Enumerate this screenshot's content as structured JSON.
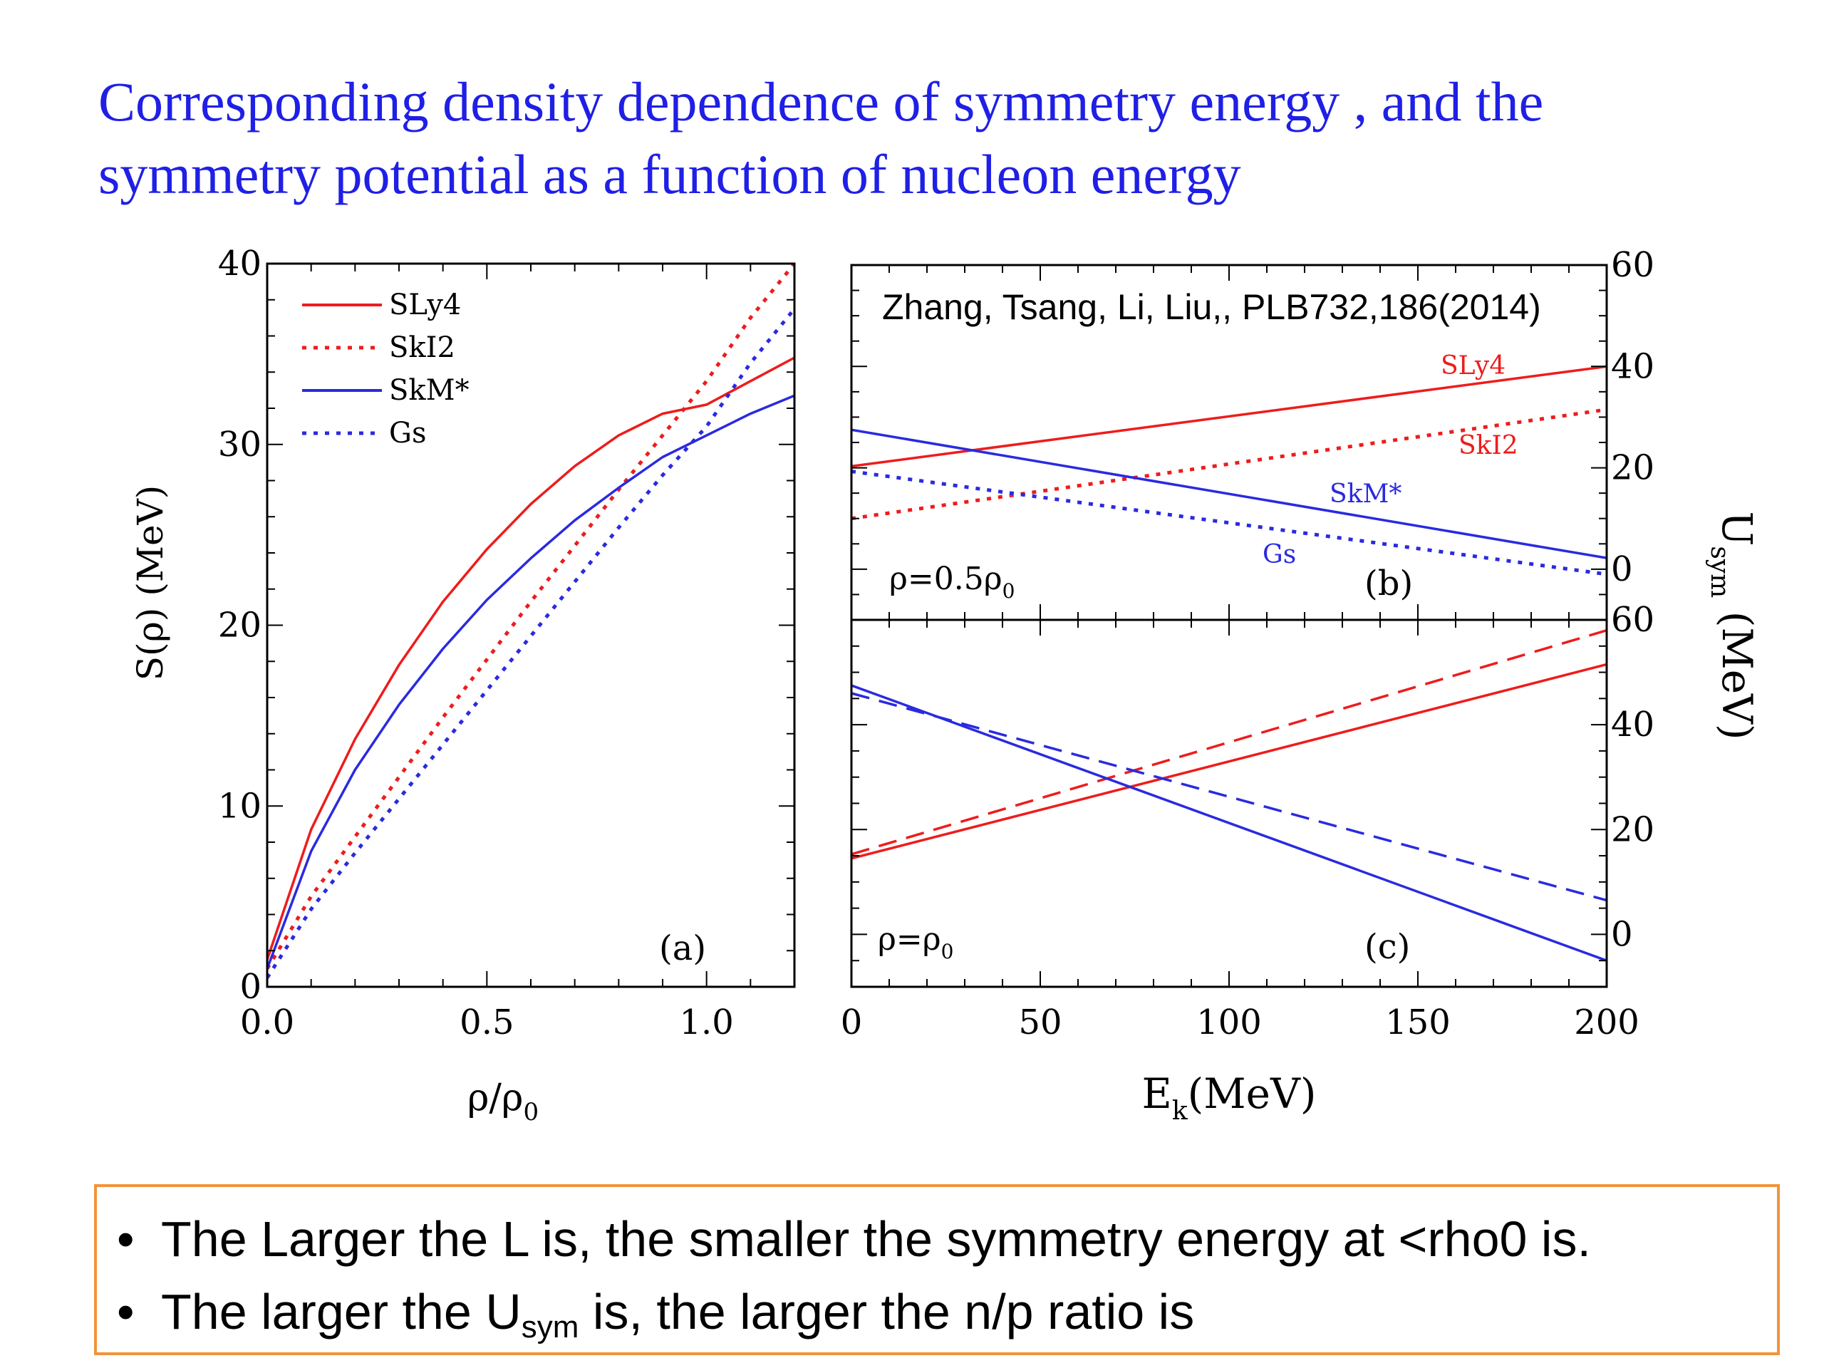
{
  "title": {
    "line1": "Corresponding density dependence of symmetry energy , and the",
    "line2": "symmetry potential as a function of nucleon energy"
  },
  "citation": "Zhang, Tsang, Li, Liu,, PLB732,186(2014)",
  "notes": {
    "bullet_char": "•",
    "item1": "The Larger the L is, the smaller the symmetry energy at <rho0 is.",
    "item2_pre": "The larger the U",
    "item2_sub": "sym",
    "item2_post": " is, the larger the n/p ratio is"
  },
  "colors": {
    "title": "#1f1fe6",
    "red": "#ee1c1c",
    "blue": "#2a2ae0",
    "box_border": "#f0943a"
  },
  "chart_data": [
    {
      "id": "a",
      "type": "line",
      "panel_label": "(a)",
      "xlabel_main": "ρ/ρ",
      "xlabel_sub": "0",
      "ylabel": "S(ρ) (MeV)",
      "xlim": [
        0,
        1.2
      ],
      "ylim": [
        0,
        40
      ],
      "xticks": [
        0.0,
        0.5,
        1.0
      ],
      "xtick_labels": [
        "0.0",
        "0.5",
        "1.0"
      ],
      "yticks": [
        0,
        10,
        20,
        30,
        40
      ],
      "ytick_labels": [
        "0",
        "10",
        "20",
        "30",
        "40"
      ],
      "legend": [
        "SLy4",
        "SkI2",
        "SkM*",
        "Gs"
      ],
      "series": [
        {
          "name": "SLy4",
          "color": "red",
          "dash": "solid",
          "x": [
            0.0,
            0.1,
            0.2,
            0.3,
            0.4,
            0.5,
            0.6,
            0.7,
            0.8,
            0.9,
            1.0,
            1.1,
            1.2
          ],
          "y": [
            1.5,
            8.7,
            13.7,
            17.8,
            21.3,
            24.2,
            26.7,
            28.8,
            30.5,
            31.7,
            32.2,
            33.5,
            34.8
          ]
        },
        {
          "name": "SkI2",
          "color": "red",
          "dash": "dotted",
          "x": [
            0.0,
            0.1,
            0.2,
            0.3,
            0.4,
            0.5,
            0.6,
            0.7,
            0.8,
            0.9,
            1.0,
            1.1,
            1.2
          ],
          "y": [
            1.0,
            5.0,
            8.3,
            11.6,
            14.9,
            18.1,
            21.3,
            24.4,
            27.5,
            30.5,
            33.5,
            37.0,
            40.0
          ]
        },
        {
          "name": "SkM*",
          "color": "blue",
          "dash": "solid",
          "x": [
            0.0,
            0.1,
            0.2,
            0.3,
            0.4,
            0.5,
            0.6,
            0.7,
            0.8,
            0.9,
            1.0,
            1.1,
            1.2
          ],
          "y": [
            1.0,
            7.5,
            12.0,
            15.6,
            18.7,
            21.4,
            23.7,
            25.8,
            27.6,
            29.3,
            30.5,
            31.7,
            32.7
          ]
        },
        {
          "name": "Gs",
          "color": "blue",
          "dash": "dotted",
          "x": [
            0.0,
            0.1,
            0.2,
            0.3,
            0.4,
            0.5,
            0.6,
            0.7,
            0.8,
            0.9,
            1.0,
            1.1,
            1.2
          ],
          "y": [
            0.5,
            4.3,
            7.4,
            10.4,
            13.4,
            16.4,
            19.4,
            22.4,
            25.4,
            28.3,
            31.0,
            34.5,
            37.5
          ]
        }
      ]
    },
    {
      "id": "b",
      "type": "line",
      "panel_label": "(b)",
      "annotation_main": "ρ=0.5ρ",
      "annotation_sub": "0",
      "xlim": [
        0,
        200
      ],
      "ylim": [
        -10,
        60
      ],
      "yticks": [
        0,
        20,
        40,
        60
      ],
      "ytick_labels": [
        "0",
        "20",
        "40",
        "60"
      ],
      "series": [
        {
          "name": "SLy4",
          "color": "red",
          "dash": "solid",
          "x": [
            0,
            200
          ],
          "y": [
            20.3,
            40.0
          ]
        },
        {
          "name": "SkI2",
          "color": "red",
          "dash": "dotted",
          "x": [
            0,
            200
          ],
          "y": [
            10.0,
            31.5
          ]
        },
        {
          "name": "SkM*",
          "color": "blue",
          "dash": "solid",
          "x": [
            0,
            200
          ],
          "y": [
            27.5,
            2.2
          ]
        },
        {
          "name": "Gs",
          "color": "blue",
          "dash": "dotted",
          "x": [
            0,
            200
          ],
          "y": [
            19.3,
            -1.0
          ]
        }
      ]
    },
    {
      "id": "c",
      "type": "line",
      "panel_label": "(c)",
      "annotation_main": "ρ=ρ",
      "annotation_sub": "0",
      "xlabel_main": "E",
      "xlabel_sub": "k",
      "xlabel_tail": "(MeV)",
      "ylabel_main": "U",
      "ylabel_sub": "sym",
      "ylabel_tail": " (MeV)",
      "xlim": [
        0,
        200
      ],
      "ylim": [
        -10,
        60
      ],
      "xticks": [
        0,
        50,
        100,
        150,
        200
      ],
      "xtick_labels": [
        "0",
        "50",
        "100",
        "150",
        "200"
      ],
      "yticks": [
        0,
        20,
        40,
        60
      ],
      "ytick_labels": [
        "0",
        "20",
        "40",
        "60"
      ],
      "series": [
        {
          "name": "SLy4",
          "color": "red",
          "dash": "solid",
          "x": [
            0,
            200
          ],
          "y": [
            14.5,
            51.5
          ]
        },
        {
          "name": "SkI2",
          "color": "red",
          "dash": "dashed",
          "x": [
            0,
            200
          ],
          "y": [
            15.3,
            58.0
          ]
        },
        {
          "name": "SkM*",
          "color": "blue",
          "dash": "solid",
          "x": [
            0,
            200
          ],
          "y": [
            47.5,
            -5.0
          ]
        },
        {
          "name": "Gs",
          "color": "blue",
          "dash": "dashed",
          "x": [
            0,
            200
          ],
          "y": [
            46.0,
            6.5
          ]
        }
      ]
    }
  ]
}
